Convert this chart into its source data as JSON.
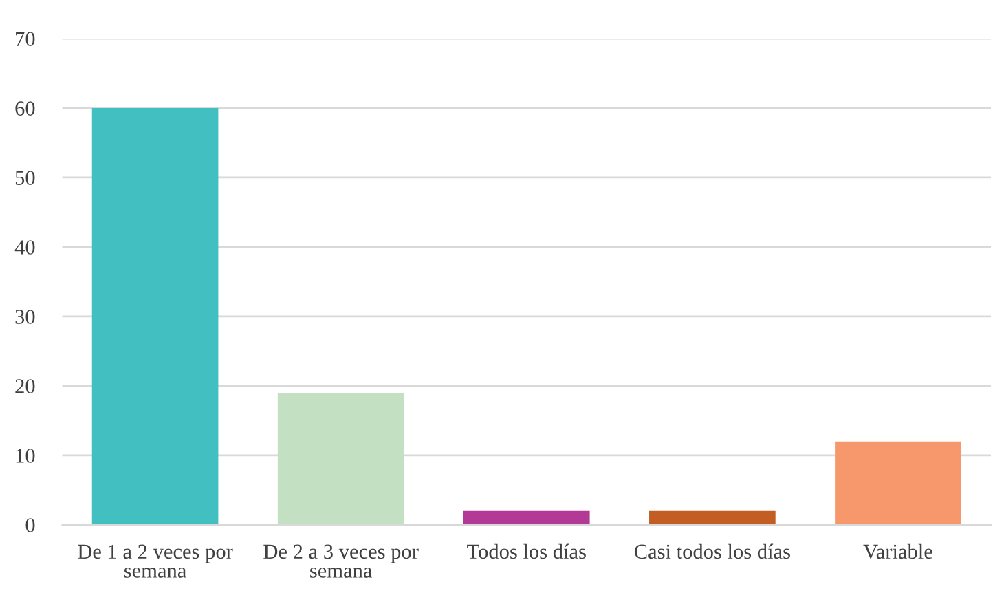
{
  "chart_data": {
    "type": "bar",
    "categories": [
      "De 1 a 2 veces por semana",
      "De 2 a 3 veces por semana",
      "Todos los días",
      "Casi todos los días",
      "Variable"
    ],
    "values": [
      60,
      19,
      2,
      2,
      12
    ],
    "colors": [
      "#41bfc1",
      "#c3e1c2",
      "#b23a96",
      "#c25e23",
      "#f6976c"
    ],
    "ylim": [
      0,
      70
    ],
    "yticks": [
      0,
      10,
      20,
      30,
      40,
      50,
      60,
      70
    ],
    "grid": "y"
  }
}
